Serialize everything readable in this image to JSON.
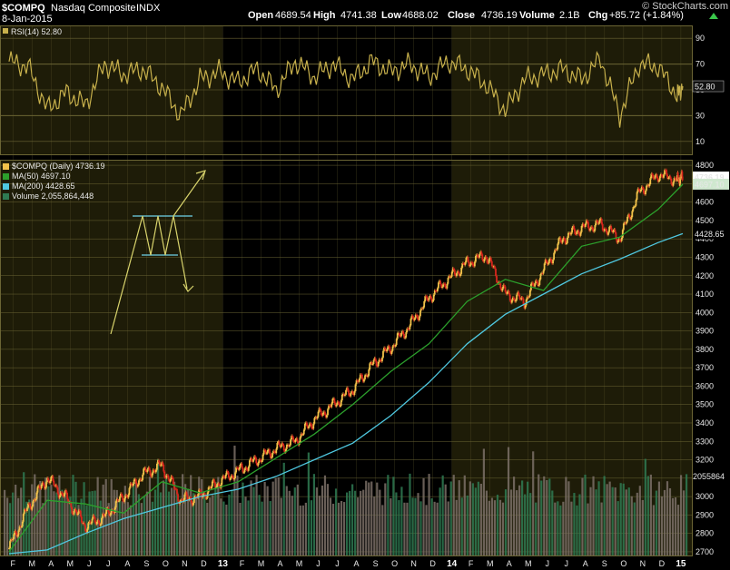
{
  "header": {
    "symbol": "$COMPQ",
    "name": "Nasdaq Composite",
    "exchange": "INDX",
    "date": "8-Jan-2015",
    "credit": "© StockCharts.com",
    "ohlc": [
      {
        "label": "Open",
        "value": "4689.54"
      },
      {
        "label": "High",
        "value": "4741.38"
      },
      {
        "label": "Low",
        "value": "4688.02"
      },
      {
        "label": "Close",
        "value": "4736.19"
      },
      {
        "label": "Volume",
        "value": "2.1B"
      },
      {
        "label": "Chg",
        "value": "+85.72 (+1.84%)"
      }
    ],
    "chg_arrow": "up-arrow-icon"
  },
  "colors": {
    "background": "#000000",
    "shaded_panel": "#1e1c08",
    "grid": "#6b6534",
    "rsi_line": "#c8b14c",
    "ma50": "#2ca02c",
    "ma200": "#4fc8e0",
    "volume": "#7a6e66",
    "volume_up": "#2f7a52",
    "candle_up": "#f2c24a",
    "candle_down": "#d7261d",
    "annotation": "#d8d36c",
    "annotation_box": "#6fd3e8",
    "price_tag": "#ffffff"
  },
  "rsi_panel": {
    "legend": "RSI(14) 52.80",
    "current_label": "52.80",
    "ticks": [
      "90",
      "70",
      "50",
      "30",
      "10"
    ]
  },
  "price_panel": {
    "legend": [
      {
        "text": "$COMPQ (Daily) 4736.19",
        "swatch": "candle"
      },
      {
        "text": "MA(50) 4697.10",
        "swatch": "#2ca02c"
      },
      {
        "text": "MA(200) 4428.65",
        "swatch": "#4fc8e0"
      },
      {
        "text": "Volume 2,055,864,448",
        "swatch": "volume"
      }
    ],
    "tags": {
      "close": "4736.19",
      "ma50": "4697.10",
      "ma200": "4428.65",
      "volume": "2055864"
    },
    "y_ticks": [
      "4800",
      "4700",
      "4600",
      "4500",
      "4400",
      "4300",
      "4200",
      "4100",
      "4000",
      "3900",
      "3800",
      "3700",
      "3600",
      "3500",
      "3400",
      "3300",
      "3200",
      "3100",
      "3000",
      "2900",
      "2800",
      "2700"
    ],
    "x_ticks": [
      "F",
      "M",
      "A",
      "M",
      "J",
      "J",
      "A",
      "S",
      "O",
      "N",
      "D",
      "13",
      "F",
      "M",
      "A",
      "M",
      "J",
      "J",
      "A",
      "S",
      "O",
      "N",
      "D",
      "14",
      "F",
      "M",
      "A",
      "M",
      "J",
      "J",
      "A",
      "S",
      "O",
      "N",
      "D",
      "15"
    ]
  },
  "chart_data": {
    "type": "line",
    "title": "$COMPQ Nasdaq Composite INDX",
    "x_range": [
      "2012-01",
      "2015-01-08"
    ],
    "ylim": [
      2680,
      4830
    ],
    "log_scale": false,
    "grid": true,
    "x_unit": "trading-month (0 = Feb 2012)",
    "series": [
      {
        "name": "$COMPQ (Daily)",
        "x": [
          0,
          1,
          2,
          3,
          4,
          5,
          6,
          7,
          8,
          9,
          10,
          11,
          12,
          13,
          14,
          15,
          16,
          17,
          18,
          19,
          20,
          21,
          22,
          23,
          24,
          25,
          26,
          27,
          28,
          29,
          30,
          31,
          32,
          33,
          34,
          35,
          35.3
        ],
        "y": [
          2720,
          2940,
          3100,
          2990,
          2840,
          2890,
          3000,
          3120,
          3170,
          2980,
          3000,
          3080,
          3140,
          3200,
          3260,
          3300,
          3420,
          3500,
          3580,
          3710,
          3810,
          3930,
          4080,
          4180,
          4270,
          4310,
          4100,
          4060,
          4230,
          4400,
          4460,
          4480,
          4400,
          4650,
          4750,
          4720,
          4736.19
        ]
      },
      {
        "name": "MA(50)",
        "x": [
          0,
          2,
          4,
          6,
          8,
          10,
          12,
          14,
          16,
          18,
          20,
          22,
          24,
          26,
          28,
          30,
          32,
          34,
          35.3
        ],
        "y": [
          2700,
          2980,
          2960,
          2910,
          3080,
          3020,
          3080,
          3210,
          3340,
          3500,
          3680,
          3830,
          4060,
          4180,
          4120,
          4360,
          4410,
          4560,
          4697.1
        ]
      },
      {
        "name": "MA(200)",
        "x": [
          0,
          2,
          4,
          6,
          8,
          10,
          12,
          14,
          16,
          18,
          20,
          22,
          24,
          26,
          28,
          30,
          32,
          34,
          35.3
        ],
        "y": [
          2690,
          2710,
          2800,
          2880,
          2940,
          3000,
          3040,
          3110,
          3200,
          3290,
          3440,
          3620,
          3830,
          3990,
          4100,
          4210,
          4290,
          4380,
          4428.65
        ]
      },
      {
        "name": "RSI(14)",
        "x": [
          0,
          1,
          2,
          3,
          4,
          5,
          6,
          7,
          8,
          9,
          10,
          11,
          12,
          13,
          14,
          15,
          16,
          17,
          18,
          19,
          20,
          21,
          22,
          23,
          24,
          25,
          26,
          27,
          28,
          29,
          30,
          31,
          32,
          33,
          34,
          35,
          35.3
        ],
        "y": [
          72,
          68,
          35,
          48,
          38,
          70,
          62,
          66,
          52,
          30,
          58,
          64,
          56,
          66,
          50,
          72,
          60,
          70,
          58,
          72,
          64,
          70,
          60,
          72,
          66,
          54,
          34,
          58,
          62,
          66,
          58,
          74,
          30,
          70,
          68,
          46,
          52.8
        ]
      }
    ]
  }
}
